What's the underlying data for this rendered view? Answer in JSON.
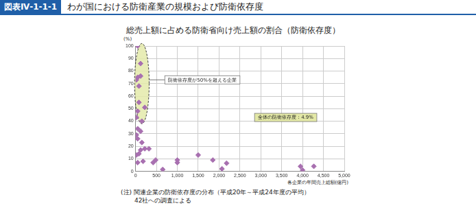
{
  "chart_data": {
    "type": "scatter",
    "figure_label": "図表Ⅳ-1-1-1",
    "figure_title": "わが国における防衛産業の規模および防衛依存度",
    "title": "総売上額に占める防衛省向け売上額の割合（防衛依存度）",
    "y_label": "(%)",
    "x_label": "各企業の年間売上総額(億円)",
    "x": [
      50,
      120,
      50,
      120,
      20,
      80,
      80,
      220,
      50,
      20,
      150,
      50,
      120,
      20,
      50,
      150,
      120,
      220,
      320,
      20,
      80,
      50,
      180,
      420,
      480,
      650,
      1000,
      1000,
      1500,
      1850,
      2070,
      2180,
      3950,
      4000,
      4270
    ],
    "values": [
      100,
      86,
      75,
      76,
      73,
      68,
      55,
      51,
      48,
      43,
      40,
      34,
      32,
      29,
      26,
      23,
      17,
      18,
      18,
      13,
      14,
      7,
      8,
      7,
      9,
      1.5,
      7,
      9,
      13,
      9,
      2,
      6.5,
      4,
      1,
      4
    ],
    "color": "#a870b0",
    "marker": "diamond",
    "xlim": [
      0,
      5000
    ],
    "xticks": [
      0,
      500,
      {
        "value": 1000,
        "label": "1,000"
      },
      {
        "value": 1500,
        "label": "1,500"
      },
      {
        "value": 2000,
        "label": "2,000"
      },
      {
        "value": 2500,
        "label": "2,500"
      },
      {
        "value": 3000,
        "label": "3,000"
      },
      {
        "value": 3500,
        "label": "3,500"
      },
      {
        "value": 4000,
        "label": "4,000"
      },
      {
        "value": 4500,
        "label": "4,500"
      },
      {
        "value": 5000,
        "label": "5,000"
      }
    ],
    "ylim": [
      0,
      100
    ],
    "yticks": [
      0,
      10,
      20,
      30,
      40,
      50,
      60,
      70,
      80,
      90,
      100
    ],
    "grid": true,
    "annotations": [
      "防衛依存度が50%を超える企業",
      "全体の防衛依存度：4.9%"
    ],
    "notes": [
      "(注) 関連企業の防衛依存度の分布（平成20年～平成24年度の平均）",
      "42社への調査による"
    ]
  }
}
